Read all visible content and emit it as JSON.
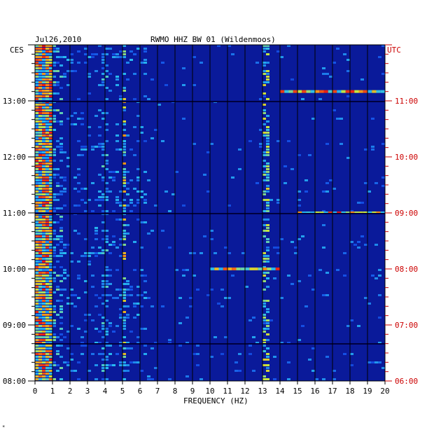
{
  "chart_data": {
    "type": "heatmap",
    "date": "Jul26,2010",
    "title": "RWMO HHZ BW 01 (Wildenmoos)",
    "left_tz": "CES",
    "right_tz": "UTC",
    "xlabel": "FREQUENCY (HZ)",
    "x_ticks": [
      "0",
      "1",
      "2",
      "3",
      "4",
      "5",
      "6",
      "7",
      "8",
      "9",
      "10",
      "11",
      "12",
      "13",
      "14",
      "15",
      "16",
      "17",
      "18",
      "19",
      "20"
    ],
    "xlim": [
      0,
      20
    ],
    "left_time_labels": [
      "08:00",
      "09:00",
      "10:00",
      "11:00",
      "12:00",
      "13:00"
    ],
    "right_time_labels": [
      "06:00",
      "07:00",
      "08:00",
      "09:00",
      "10:00",
      "11:00"
    ],
    "time_range_ces": [
      "08:00",
      "13:50"
    ],
    "colors": {
      "background": "#0a1a9a",
      "accent_red": "#cc0000"
    },
    "notable_features": [
      {
        "frequency_hz": 0.5,
        "description": "strong broadband energy band 0.1-1.0 Hz"
      },
      {
        "frequency_hz": 5.1,
        "description": "persistent spectral line"
      },
      {
        "frequency_hz": 13.2,
        "description": "persistent spectral line"
      },
      {
        "frequency_hz_range": [
          10,
          14
        ],
        "time_ces": "10:00",
        "description": "strong burst"
      },
      {
        "frequency_hz_range": [
          14,
          20
        ],
        "time_ces": "13:10",
        "description": "strong burst"
      },
      {
        "frequency_hz_range": [
          15,
          20
        ],
        "time_ces": "11:00",
        "description": "burst"
      }
    ]
  },
  "footnote": "*"
}
